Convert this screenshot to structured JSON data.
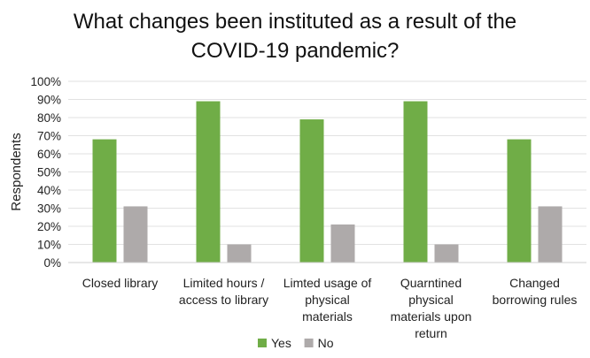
{
  "chart_data": {
    "type": "bar",
    "title_lines": [
      "What changes been instituted as a result of the",
      "COVID-19 pandemic?"
    ],
    "ylabel": "Respondents",
    "ylim": [
      0,
      100
    ],
    "yticks": [
      "0%",
      "10%",
      "20%",
      "30%",
      "40%",
      "50%",
      "60%",
      "70%",
      "80%",
      "90%",
      "100%"
    ],
    "categories": [
      [
        "Closed library"
      ],
      [
        "Limited hours /",
        "access to library"
      ],
      [
        "Limted usage of",
        "physical",
        "materials"
      ],
      [
        "Quarntined",
        "physical",
        "materials upon",
        "return"
      ],
      [
        "Changed",
        "borrowing rules"
      ]
    ],
    "series": [
      {
        "name": "Yes",
        "color": "#70ad47",
        "values": [
          68,
          89,
          79,
          89,
          68
        ]
      },
      {
        "name": "No",
        "color": "#aeaaaa",
        "values": [
          31,
          10,
          21,
          10,
          31
        ]
      }
    ],
    "grid": true,
    "legend_position": "bottom"
  }
}
